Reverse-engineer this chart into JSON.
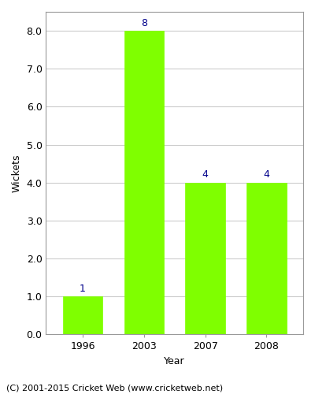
{
  "categories": [
    "1996",
    "2003",
    "2007",
    "2008"
  ],
  "values": [
    1,
    8,
    4,
    4
  ],
  "bar_color": "#7FFF00",
  "bar_edge_color": "#7FFF00",
  "xlabel": "Year",
  "ylabel": "Wickets",
  "ylim": [
    0.0,
    8.5
  ],
  "yticks": [
    0.0,
    1.0,
    2.0,
    3.0,
    4.0,
    5.0,
    6.0,
    7.0,
    8.0
  ],
  "annotation_color": "#00008B",
  "annotation_fontsize": 9,
  "axis_label_fontsize": 9,
  "tick_fontsize": 9,
  "caption": "(C) 2001-2015 Cricket Web (www.cricketweb.net)",
  "caption_fontsize": 8,
  "background_color": "#ffffff",
  "grid_color": "#cccccc",
  "bar_width": 0.65
}
